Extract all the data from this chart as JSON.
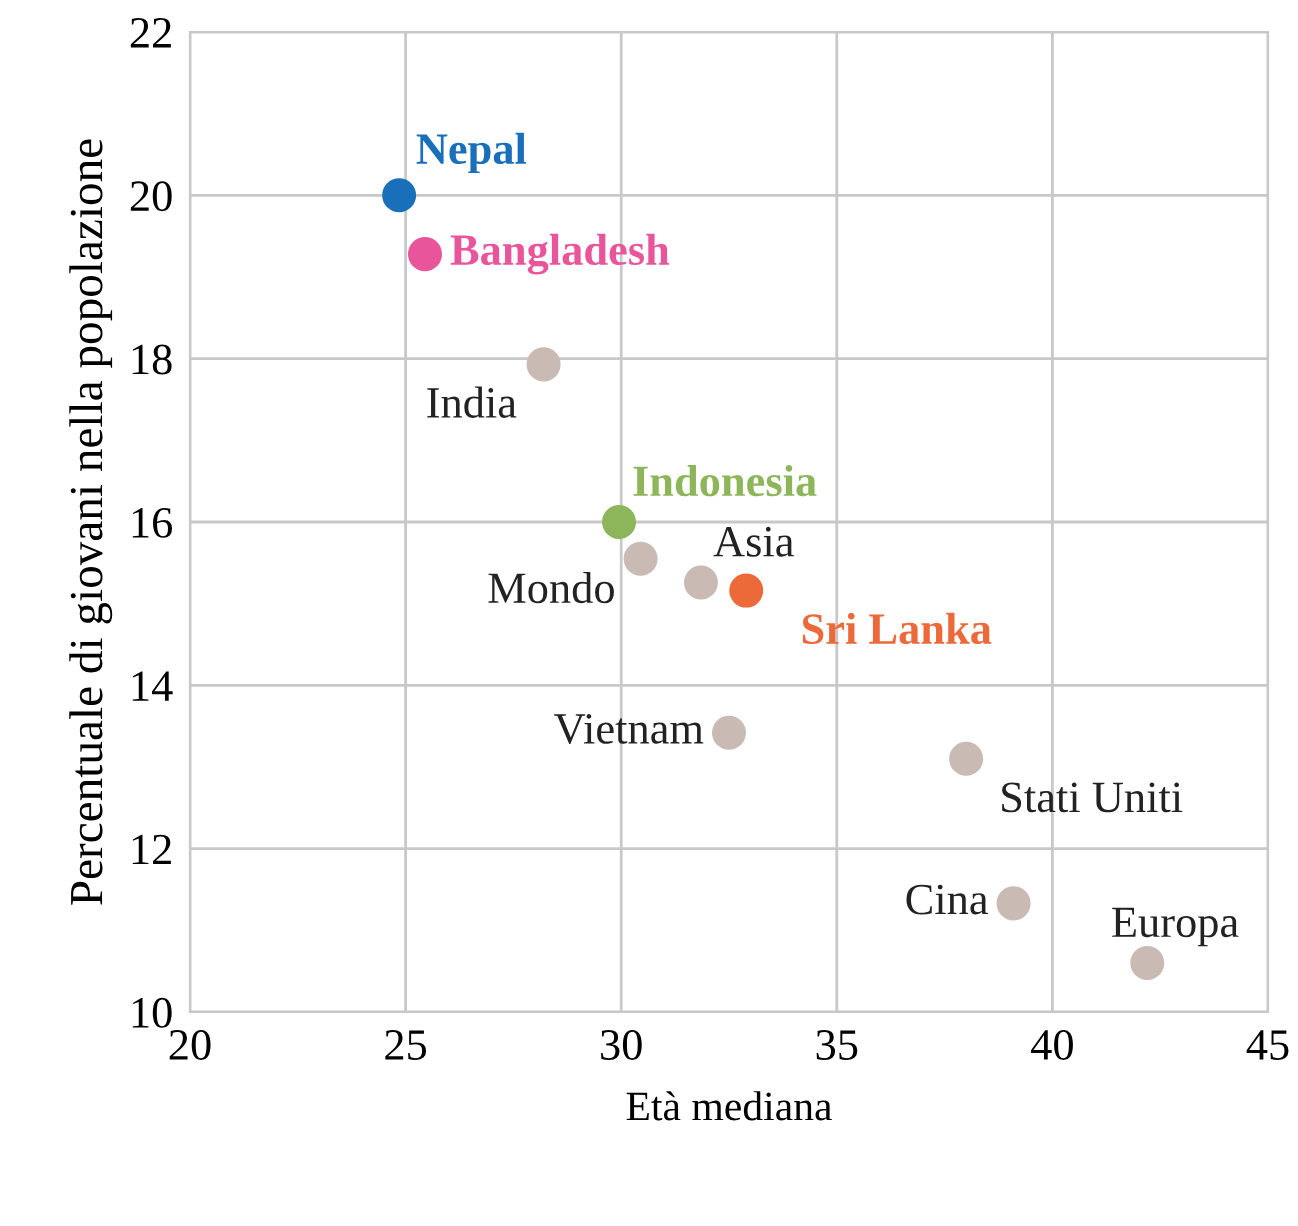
{
  "chart_data": {
    "type": "scatter",
    "xlabel": "Età mediana",
    "ylabel": "Percentuale di giovani nella popolazione",
    "xlim": [
      20,
      45
    ],
    "ylim": [
      10,
      22
    ],
    "xticks": [
      20,
      25,
      30,
      35,
      40,
      45
    ],
    "yticks": [
      10,
      12,
      14,
      16,
      18,
      20,
      22
    ],
    "grid": true,
    "marker": "circle",
    "series": [
      {
        "name": "Nepal",
        "color": "#1a6fba",
        "x": [
          24.85
        ],
        "values": [
          20.0
        ]
      },
      {
        "name": "Bangladesh",
        "color": "#e8559a",
        "x": [
          25.45
        ],
        "values": [
          19.28
        ]
      },
      {
        "name": "India",
        "color": "#c9bab3",
        "x": [
          28.2
        ],
        "values": [
          17.93
        ]
      },
      {
        "name": "Indonesia",
        "color": "#8db55a",
        "x": [
          29.95
        ],
        "values": [
          16.0
        ]
      },
      {
        "name": "Mondo",
        "color": "#c9bab3",
        "x": [
          30.45
        ],
        "values": [
          15.55
        ]
      },
      {
        "name": "Asia",
        "color": "#c9bab3",
        "x": [
          31.85
        ],
        "values": [
          15.26
        ]
      },
      {
        "name": "Sri Lanka",
        "color": "#ec6a3a",
        "x": [
          32.9
        ],
        "values": [
          15.16
        ]
      },
      {
        "name": "Vietnam",
        "color": "#c9bab3",
        "x": [
          32.5
        ],
        "values": [
          13.42
        ]
      },
      {
        "name": "Stati Uniti",
        "color": "#c9bab3",
        "x": [
          38.0
        ],
        "values": [
          13.1
        ]
      },
      {
        "name": "Cina",
        "color": "#c9bab3",
        "x": [
          39.1
        ],
        "values": [
          11.33
        ]
      },
      {
        "name": "Europa",
        "color": "#c9bab3",
        "x": [
          42.2
        ],
        "values": [
          10.6
        ]
      }
    ]
  }
}
